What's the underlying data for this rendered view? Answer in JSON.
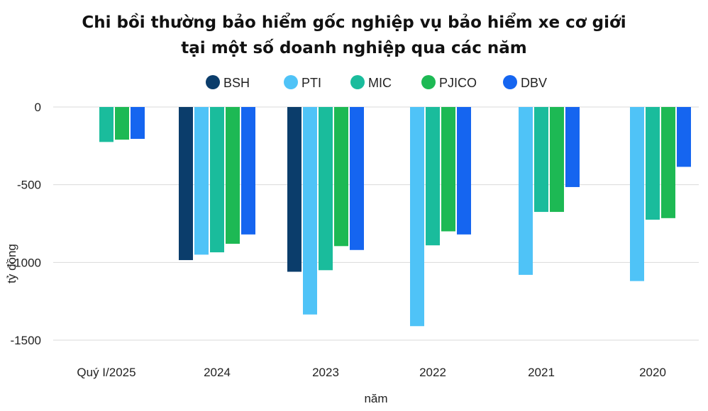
{
  "chart_data": {
    "type": "bar",
    "title_line1": "Chi bồi thường bảo hiểm gốc nghiệp vụ bảo hiểm xe cơ giới",
    "title_line2": "tại một số doanh nghiệp qua các năm",
    "xlabel": "năm",
    "ylabel": "tỷ đồng",
    "ylim": [
      -1500,
      0
    ],
    "yticks": [
      0,
      -500,
      -1000,
      -1500
    ],
    "ytick_labels": [
      "0",
      "-500",
      "-1000",
      "-1500"
    ],
    "categories": [
      "Quý I/2025",
      "2024",
      "2023",
      "2022",
      "2021",
      "2020"
    ],
    "legend_position": "top-center",
    "series": [
      {
        "name": "BSH",
        "color": "#0B3D6B",
        "values": [
          null,
          -985,
          -1060,
          null,
          null,
          null
        ]
      },
      {
        "name": "PTI",
        "color": "#4FC3F7",
        "values": [
          null,
          -950,
          -1335,
          -1410,
          -1080,
          -1120
        ]
      },
      {
        "name": "MIC",
        "color": "#1ABC9C",
        "values": [
          -225,
          -935,
          -1050,
          -890,
          -675,
          -725
        ]
      },
      {
        "name": "PJICO",
        "color": "#1DB954",
        "values": [
          -210,
          -880,
          -895,
          -800,
          -675,
          -715
        ]
      },
      {
        "name": "DBV",
        "color": "#1565F0",
        "values": [
          -205,
          -820,
          -920,
          -820,
          -515,
          -385
        ]
      }
    ]
  }
}
